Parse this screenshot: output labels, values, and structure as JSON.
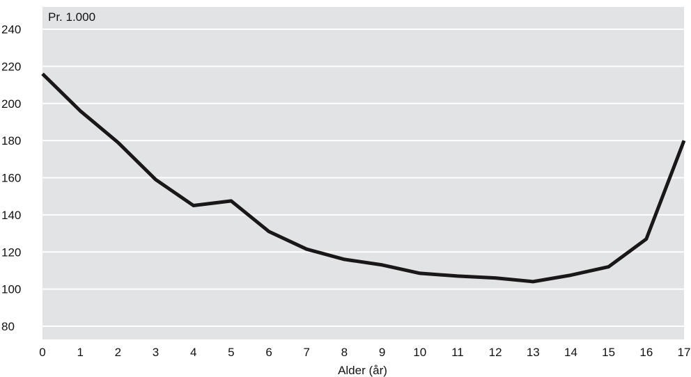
{
  "chart_data": {
    "type": "line",
    "title": "",
    "ylabel": "Pr. 1.000",
    "xlabel": "Alder (år)",
    "categories": [
      "0",
      "1",
      "2",
      "3",
      "4",
      "5",
      "6",
      "7",
      "8",
      "9",
      "10",
      "11",
      "12",
      "13",
      "14",
      "15",
      "16",
      "17"
    ],
    "x": [
      0,
      1,
      2,
      3,
      4,
      5,
      6,
      7,
      8,
      9,
      10,
      11,
      12,
      13,
      14,
      15,
      16,
      17
    ],
    "series": [
      {
        "values": [
          216,
          196,
          179,
          159,
          145,
          147.5,
          131,
          121.5,
          116,
          113,
          108.5,
          107,
          106,
          104,
          107.5,
          112,
          127,
          180
        ]
      }
    ],
    "ylim": [
      80,
      240
    ],
    "yticks": [
      "80",
      "100",
      "120",
      "140",
      "160",
      "180",
      "200",
      "220",
      "240"
    ],
    "ytick_values": [
      80,
      100,
      120,
      140,
      160,
      180,
      200,
      220,
      240
    ],
    "grid": true,
    "legend": "none",
    "colors": {
      "plot_background": "#e2e3e4",
      "gridline": "#ffffff",
      "line": "#1a1718",
      "text": "#111111"
    }
  }
}
